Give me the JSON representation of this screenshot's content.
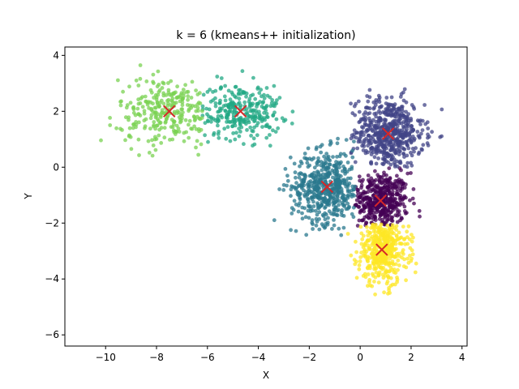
{
  "chart_data": {
    "type": "scatter",
    "title": "k = 6 (kmeans++ initialization)",
    "xlabel": "X",
    "ylabel": "Y",
    "xlim": [
      -11.6,
      4.2
    ],
    "ylim": [
      -6.4,
      4.3
    ],
    "xticks": [
      -10,
      -8,
      -6,
      -4,
      -2,
      0,
      2,
      4
    ],
    "yticks": [
      -6,
      -4,
      -2,
      0,
      2,
      4
    ],
    "grid": false,
    "clusters": [
      {
        "color": "#440154",
        "center": [
          0.8,
          -1.2
        ],
        "spread": [
          0.55,
          0.5
        ],
        "count": 430,
        "bounds": [
          -0.2,
          2.6,
          -2.1,
          0.0
        ]
      },
      {
        "color": "#414487",
        "center": [
          1.1,
          1.2
        ],
        "spread": [
          0.7,
          0.65
        ],
        "count": 560,
        "bounds": [
          -0.4,
          3.4,
          0.0,
          3.3
        ]
      },
      {
        "color": "#2a788e",
        "center": [
          -1.3,
          -0.7
        ],
        "spread": [
          0.7,
          0.65
        ],
        "count": 520,
        "bounds": [
          -3.4,
          -0.2,
          -2.7,
          1.1
        ]
      },
      {
        "color": "#22a884",
        "center": [
          -4.7,
          2.0
        ],
        "spread": [
          0.8,
          0.5
        ],
        "count": 280,
        "bounds": [
          -6.2,
          -2.6,
          0.7,
          3.6
        ]
      },
      {
        "color": "#7ad151",
        "center": [
          -7.5,
          2.0
        ],
        "spread": [
          1.0,
          0.6
        ],
        "count": 280,
        "bounds": [
          -11.2,
          -6.2,
          0.3,
          3.8
        ]
      },
      {
        "color": "#fde725",
        "center": [
          0.9,
          -2.9
        ],
        "spread": [
          0.5,
          0.65
        ],
        "count": 430,
        "bounds": [
          -0.6,
          2.4,
          -5.9,
          -2.05
        ]
      }
    ],
    "centroids": [
      {
        "x": 0.8,
        "y": -1.2
      },
      {
        "x": 1.1,
        "y": 1.2
      },
      {
        "x": -1.3,
        "y": -0.7
      },
      {
        "x": -4.7,
        "y": 2.0
      },
      {
        "x": -7.5,
        "y": 2.0
      },
      {
        "x": 0.85,
        "y": -2.95
      }
    ],
    "centroid_color": "#d62728",
    "point_alpha": 0.75
  }
}
